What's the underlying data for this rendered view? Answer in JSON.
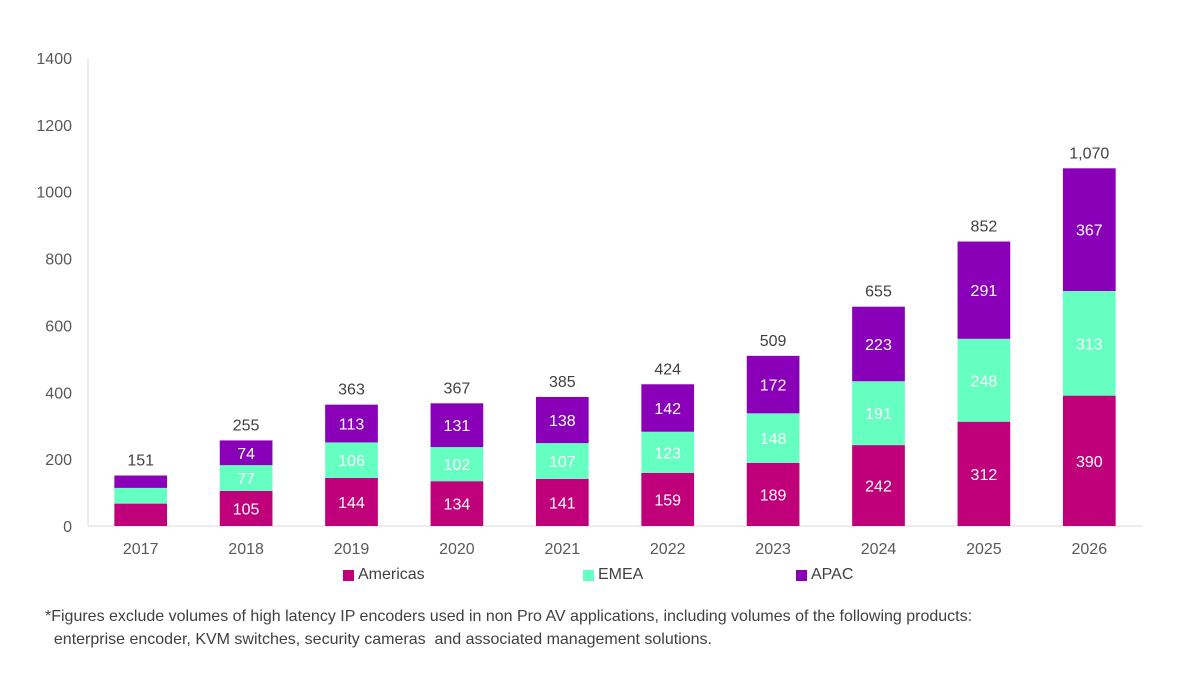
{
  "chart_data": {
    "type": "bar",
    "stacked": true,
    "categories": [
      "2017",
      "2018",
      "2019",
      "2020",
      "2021",
      "2022",
      "2023",
      "2024",
      "2025",
      "2026"
    ],
    "series": [
      {
        "name": "Americas",
        "color": "#c0007a",
        "values": [
          67,
          105,
          144,
          134,
          141,
          159,
          189,
          242,
          312,
          390
        ],
        "labels": [
          "",
          "105",
          "144",
          "134",
          "141",
          "159",
          "189",
          "242",
          "312",
          "390"
        ]
      },
      {
        "name": "EMEA",
        "color": "#66ffc2",
        "values": [
          47,
          77,
          106,
          102,
          107,
          123,
          148,
          191,
          248,
          313
        ],
        "labels": [
          "",
          "77",
          "106",
          "102",
          "107",
          "123",
          "148",
          "191",
          "248",
          "313"
        ]
      },
      {
        "name": "APAC",
        "color": "#8a00b8",
        "values": [
          37,
          74,
          113,
          131,
          138,
          142,
          172,
          223,
          291,
          367
        ],
        "labels": [
          "",
          "74",
          "113",
          "131",
          "138",
          "142",
          "172",
          "223",
          "291",
          "367"
        ]
      }
    ],
    "totals": [
      "151",
      "255",
      "363",
      "367",
      "385",
      "424",
      "509",
      "655",
      "852",
      "1,070"
    ],
    "ylim": [
      0,
      1400
    ],
    "yticks": [
      0,
      200,
      400,
      600,
      800,
      1000,
      1200,
      1400
    ],
    "grid": false,
    "legend": "bottom"
  },
  "footnote": {
    "line1": "*Figures exclude volumes of high latency IP encoders used in non Pro AV applications, including volumes of the following products:",
    "line2": "  enterprise encoder, KVM switches, security cameras  and associated management solutions."
  }
}
